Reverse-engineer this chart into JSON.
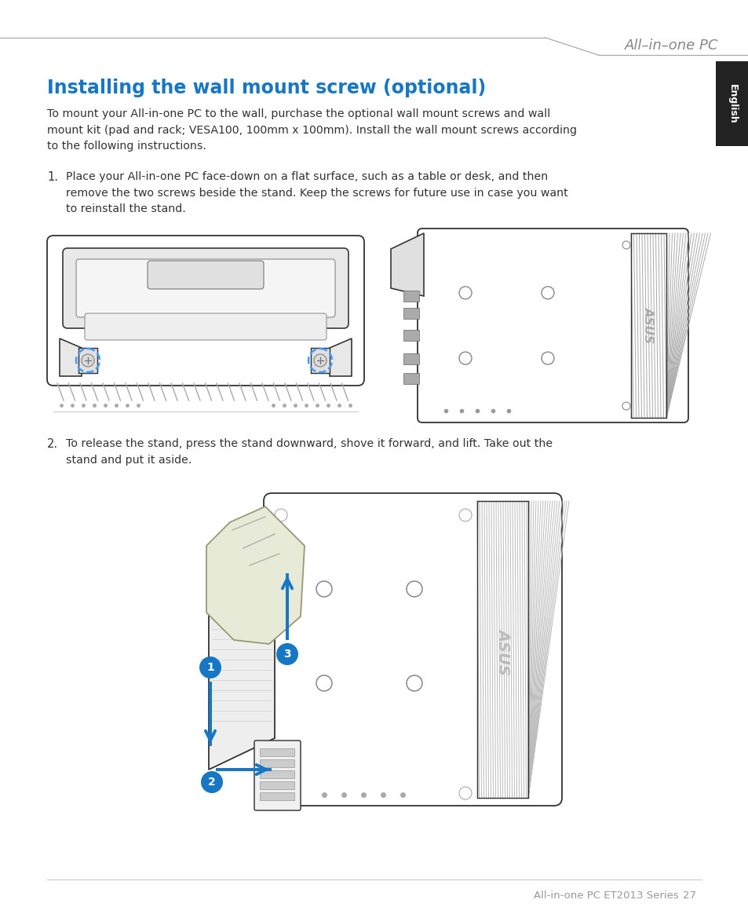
{
  "title_header": "All–in–one PC",
  "section_title": "Installing the wall mount screw (optional)",
  "body_text_1": "To mount your All-in-one PC to the wall, purchase the optional wall mount screws and wall\nmount kit (pad and rack; VESA100, 100mm x 100mm). Install the wall mount screws according\nto the following instructions.",
  "step1_num": "1.",
  "step1_text": "Place your All-in-one PC face-down on a flat surface, such as a table or desk, and then\nremove the two screws beside the stand. Keep the screws for future use in case you want\nto reinstall the stand.",
  "step2_num": "2.",
  "step2_text": "To release the stand, press the stand downward, shove it forward, and lift. Take out the\nstand and put it aside.",
  "footer_text": "All-in-one PC ET2013 Series",
  "footer_page": "27",
  "english_tab_text": "English",
  "header_line_color": "#aaaaaa",
  "header_text_color": "#888888",
  "section_title_color": "#1777c4",
  "body_text_color": "#333333",
  "english_tab_bg": "#222222",
  "english_tab_text_color": "#ffffff",
  "bg_color": "#ffffff",
  "blue_color": "#1777c4",
  "sketch_edge": "#333333",
  "sketch_fill": "#ffffff",
  "gray_fill": "#e8e8e8",
  "hatch_gray": "#bbbbbb",
  "dashed_blue": "#4499ff"
}
